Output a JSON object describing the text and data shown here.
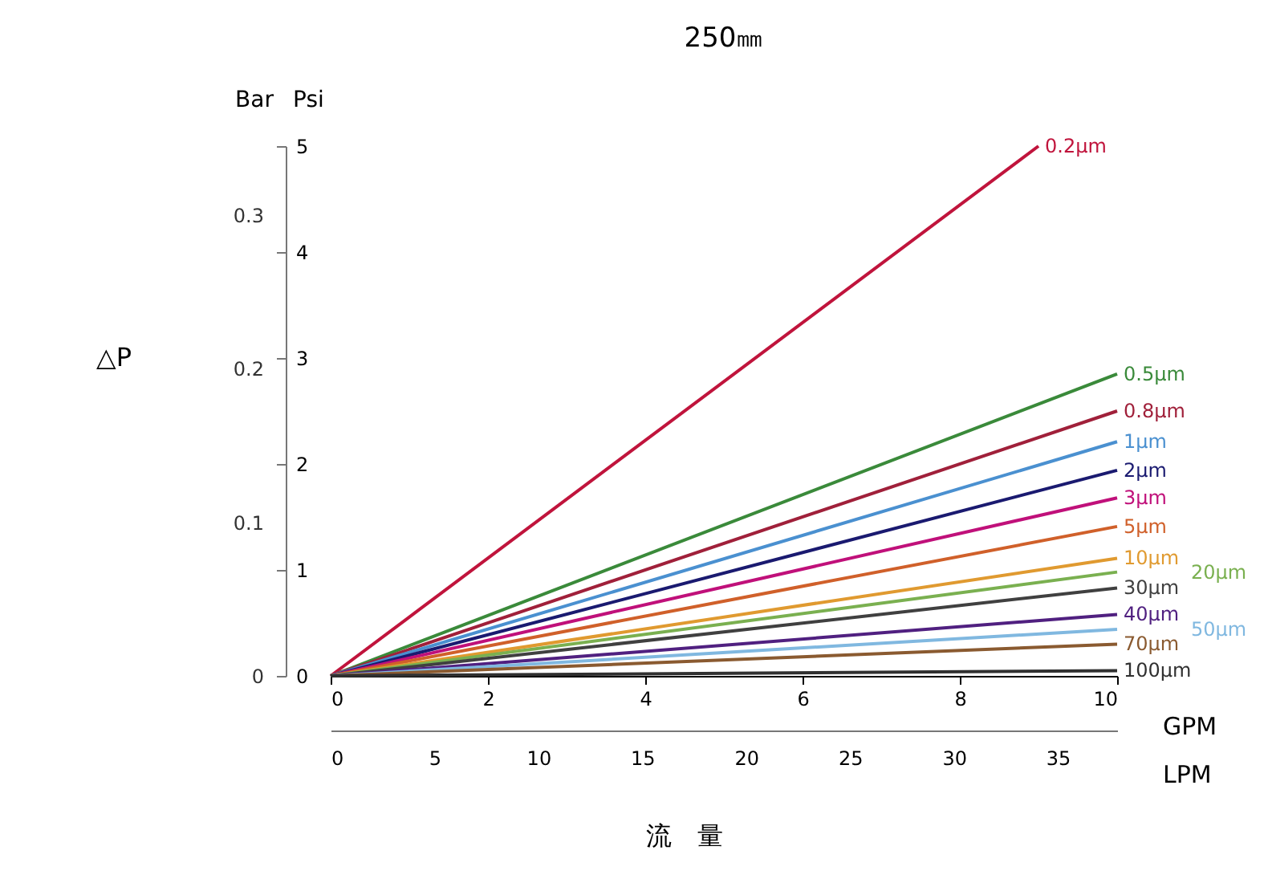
{
  "chart_data": {
    "type": "line",
    "title": "250㎜",
    "xlabel": "GPM",
    "ylabel": "Psi",
    "y2label": "Bar",
    "x2label": "LPM",
    "xlim": [
      0,
      10
    ],
    "xticks": [
      0,
      2,
      4,
      6,
      8,
      10
    ],
    "ylim": [
      0,
      5
    ],
    "yticks": [
      0,
      1,
      2,
      3,
      4,
      5
    ],
    "y2lim": [
      0,
      0.3447
    ],
    "y2ticks": [
      0,
      0.1,
      0.2,
      0.3
    ],
    "x2lim": [
      0,
      37.854
    ],
    "x2ticks": [
      0,
      5,
      10,
      15,
      20,
      25,
      30,
      35
    ],
    "grid": false,
    "legend": false,
    "line_style": "solid",
    "marker": "none",
    "annotations": [
      "△P",
      "流　量"
    ],
    "series": [
      {
        "name": "0.2μm",
        "color": "#c0143c",
        "x": [
          0,
          9.0
        ],
        "values": [
          0,
          5.0
        ]
      },
      {
        "name": "0.5μm",
        "color": "#3a8a3a",
        "x": [
          0,
          10
        ],
        "values": [
          0,
          2.85
        ]
      },
      {
        "name": "0.8μm",
        "color": "#a0203a",
        "x": [
          0,
          10
        ],
        "values": [
          0,
          2.5
        ]
      },
      {
        "name": "1μm",
        "color": "#4a90d0",
        "x": [
          0,
          10
        ],
        "values": [
          0,
          2.21
        ]
      },
      {
        "name": "2μm",
        "color": "#1a1a70",
        "x": [
          0,
          10
        ],
        "values": [
          0,
          1.94
        ]
      },
      {
        "name": "3μm",
        "color": "#c0107a",
        "x": [
          0,
          10
        ],
        "values": [
          0,
          1.68
        ]
      },
      {
        "name": "5μm",
        "color": "#d0602a",
        "x": [
          0,
          10
        ],
        "values": [
          0,
          1.41
        ]
      },
      {
        "name": "10μm",
        "color": "#e09a30",
        "x": [
          0,
          10
        ],
        "values": [
          0,
          1.11
        ]
      },
      {
        "name": "20μm",
        "color": "#7ab050",
        "x": [
          0,
          10
        ],
        "values": [
          0,
          0.98
        ]
      },
      {
        "name": "30μm",
        "color": "#404040",
        "x": [
          0,
          10
        ],
        "values": [
          0,
          0.83
        ]
      },
      {
        "name": "40μm",
        "color": "#502080",
        "x": [
          0,
          10
        ],
        "values": [
          0,
          0.58
        ]
      },
      {
        "name": "50μm",
        "color": "#80b8e0",
        "x": [
          0,
          10
        ],
        "values": [
          0,
          0.44
        ]
      },
      {
        "name": "70μm",
        "color": "#8a5a30",
        "x": [
          0,
          10
        ],
        "values": [
          0,
          0.3
        ]
      },
      {
        "name": "100μm",
        "color": "#303030",
        "x": [
          0,
          10
        ],
        "values": [
          0,
          0.05
        ]
      }
    ]
  }
}
